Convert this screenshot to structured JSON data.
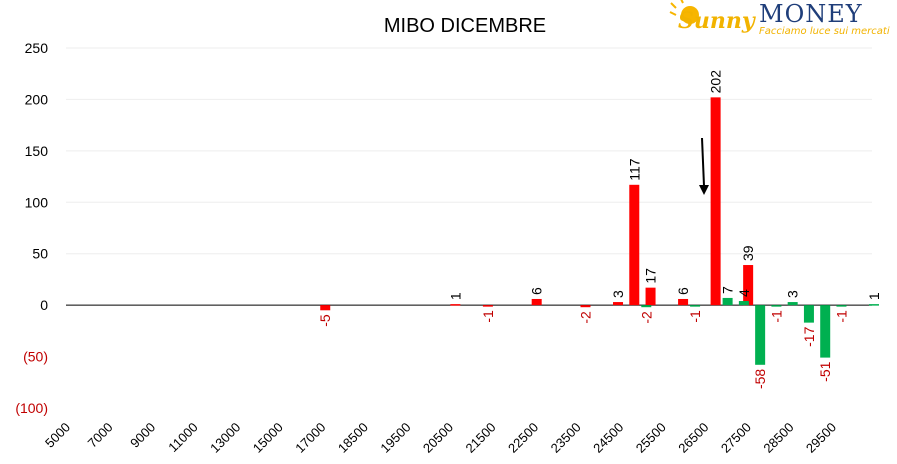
{
  "logo": {
    "word1": "Sunny",
    "word2": "MONEY",
    "tagline": "Facciamo luce sui mercati"
  },
  "chart_data": {
    "type": "bar",
    "title": "MIBO DICEMBRE",
    "xlabel": "",
    "ylabel": "",
    "ylim": [
      -100,
      250
    ],
    "yticks": [
      250,
      200,
      150,
      100,
      50,
      0,
      -50,
      -100
    ],
    "ytick_labels": [
      "250",
      "200",
      "150",
      "100",
      "50",
      "0",
      "(50)",
      "(100)"
    ],
    "grid": true,
    "x_tick_labels": [
      "5000",
      "7000",
      "9000",
      "11000",
      "13000",
      "15000",
      "17000",
      "18500",
      "19500",
      "20500",
      "21500",
      "22500",
      "23500",
      "24500",
      "25500",
      "26500",
      "27500",
      "28500",
      "29500"
    ],
    "colors": {
      "red": "#ff0000",
      "green": "#00b050",
      "negative_label": "#c00000"
    },
    "series": [
      {
        "color": "red",
        "points": [
          {
            "x": 13000,
            "v": -5,
            "label": "-5"
          },
          {
            "x": 17000,
            "v": 1,
            "label": "1"
          },
          {
            "x": 18000,
            "v": -1,
            "label": "-1"
          },
          {
            "x": 19500,
            "v": 6,
            "label": "6"
          },
          {
            "x": 21000,
            "v": -2,
            "label": "-2"
          },
          {
            "x": 22000,
            "v": 3,
            "label": "3"
          },
          {
            "x": 22500,
            "v": 117,
            "label": "117"
          },
          {
            "x": 23000,
            "v": 17,
            "label": "17"
          },
          {
            "x": 24000,
            "v": 6,
            "label": "6"
          },
          {
            "x": 25000,
            "v": 202,
            "label": "202"
          },
          {
            "x": 26000,
            "v": 39,
            "label": "39"
          }
        ]
      },
      {
        "color": "green",
        "points": [
          {
            "x": 22500,
            "v": -2,
            "label": "-2"
          },
          {
            "x": 24000,
            "v": -1,
            "label": "-1"
          },
          {
            "x": 25000,
            "v": 7,
            "label": "7"
          },
          {
            "x": 25500,
            "v": 4,
            "label": "4"
          },
          {
            "x": 26000,
            "v": -58,
            "label": "-58"
          },
          {
            "x": 26500,
            "v": -1,
            "label": "-1"
          },
          {
            "x": 27000,
            "v": 3,
            "label": "3"
          },
          {
            "x": 27500,
            "v": -17,
            "label": "-17"
          },
          {
            "x": 28000,
            "v": -51,
            "label": "-51"
          },
          {
            "x": 28500,
            "v": -1,
            "label": "-1"
          },
          {
            "x": 29500,
            "v": 1,
            "label": "1"
          }
        ]
      }
    ],
    "annotation": "down-arrow-near-26000"
  }
}
